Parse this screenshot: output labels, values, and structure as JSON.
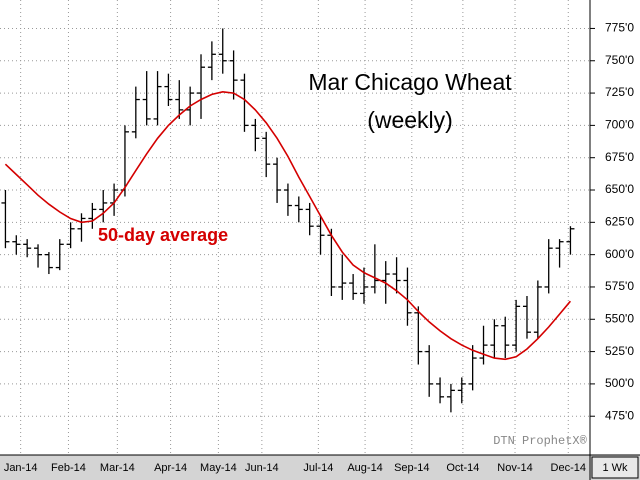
{
  "chart_data": {
    "type": "ohlc",
    "title": "Mar Chicago Wheat",
    "subtitle": "(weekly)",
    "watermark": "DTN ProphetX®",
    "interval_label": "1 Wk",
    "grid": true,
    "bar_color": "#000000",
    "x": [
      0,
      1,
      2,
      3,
      4,
      5,
      6,
      7,
      8,
      9,
      10,
      11,
      12,
      13,
      14,
      15,
      16,
      17,
      18,
      19,
      20,
      21,
      22,
      23,
      24,
      25,
      26,
      27,
      28,
      29,
      30,
      31,
      32,
      33,
      34,
      35,
      36,
      37,
      38,
      39,
      40,
      41,
      42,
      43,
      44,
      45,
      46,
      47,
      48,
      49,
      50,
      51,
      52
    ],
    "open": [
      640,
      610,
      608,
      605,
      600,
      590,
      608,
      620,
      628,
      635,
      640,
      650,
      695,
      720,
      705,
      730,
      720,
      712,
      725,
      745,
      755,
      750,
      735,
      700,
      690,
      670,
      650,
      638,
      635,
      622,
      615,
      575,
      578,
      570,
      575,
      580,
      585,
      580,
      555,
      525,
      500,
      490,
      495,
      500,
      520,
      530,
      545,
      530,
      560,
      540,
      575,
      605,
      610
    ],
    "high": [
      650,
      615,
      612,
      608,
      602,
      612,
      625,
      632,
      640,
      650,
      655,
      700,
      730,
      742,
      742,
      740,
      735,
      730,
      755,
      765,
      775,
      758,
      740,
      705,
      695,
      675,
      655,
      645,
      640,
      630,
      620,
      600,
      585,
      590,
      608,
      595,
      598,
      590,
      560,
      530,
      505,
      500,
      505,
      530,
      545,
      550,
      552,
      565,
      568,
      580,
      612,
      612,
      622
    ],
    "low": [
      605,
      600,
      598,
      590,
      585,
      588,
      605,
      610,
      620,
      625,
      630,
      645,
      690,
      700,
      700,
      715,
      705,
      700,
      705,
      735,
      740,
      720,
      695,
      680,
      660,
      640,
      630,
      625,
      615,
      600,
      568,
      565,
      565,
      562,
      570,
      562,
      570,
      545,
      515,
      490,
      485,
      478,
      485,
      495,
      515,
      520,
      520,
      525,
      535,
      535,
      570,
      590,
      600
    ],
    "close": [
      610,
      608,
      605,
      600,
      590,
      608,
      620,
      628,
      635,
      640,
      650,
      695,
      720,
      705,
      730,
      720,
      712,
      725,
      745,
      755,
      750,
      735,
      700,
      690,
      670,
      650,
      638,
      635,
      622,
      615,
      575,
      578,
      570,
      575,
      580,
      585,
      580,
      555,
      525,
      500,
      490,
      495,
      500,
      520,
      530,
      545,
      530,
      560,
      540,
      575,
      605,
      610,
      620
    ],
    "moving_average": {
      "name": "50-day average",
      "color": "#d40000",
      "values": [
        670,
        662,
        654,
        646,
        639,
        633,
        628,
        625,
        626,
        632,
        640,
        652,
        665,
        678,
        690,
        700,
        708,
        715,
        720,
        724,
        726,
        725,
        720,
        712,
        702,
        690,
        676,
        660,
        645,
        630,
        615,
        602,
        592,
        586,
        582,
        578,
        572,
        565,
        556,
        548,
        541,
        535,
        530,
        526,
        523,
        520,
        519,
        521,
        527,
        535,
        544,
        554,
        564
      ]
    },
    "xlim": [
      -0.5,
      53.8
    ],
    "xticks": [
      {
        "value": 1.4,
        "label": "Jan-14"
      },
      {
        "value": 5.8,
        "label": "Feb-14"
      },
      {
        "value": 10.3,
        "label": "Mar-14"
      },
      {
        "value": 15.2,
        "label": "Apr-14"
      },
      {
        "value": 19.6,
        "label": "May-14"
      },
      {
        "value": 23.6,
        "label": "Jun-14"
      },
      {
        "value": 28.8,
        "label": "Jul-14"
      },
      {
        "value": 33.1,
        "label": "Aug-14"
      },
      {
        "value": 37.4,
        "label": "Sep-14"
      },
      {
        "value": 42.1,
        "label": "Oct-14"
      },
      {
        "value": 46.9,
        "label": "Nov-14"
      },
      {
        "value": 51.8,
        "label": "Dec-14"
      }
    ],
    "ylim": [
      445,
      797
    ],
    "yticks": [
      {
        "value": 475,
        "label": "475'0"
      },
      {
        "value": 500,
        "label": "500'0"
      },
      {
        "value": 525,
        "label": "525'0"
      },
      {
        "value": 550,
        "label": "550'0"
      },
      {
        "value": 575,
        "label": "575'0"
      },
      {
        "value": 600,
        "label": "600'0"
      },
      {
        "value": 625,
        "label": "625'0"
      },
      {
        "value": 650,
        "label": "650'0"
      },
      {
        "value": 675,
        "label": "675'0"
      },
      {
        "value": 700,
        "label": "700'0"
      },
      {
        "value": 725,
        "label": "725'0"
      },
      {
        "value": 750,
        "label": "750'0"
      },
      {
        "value": 775,
        "label": "775'0"
      }
    ]
  }
}
